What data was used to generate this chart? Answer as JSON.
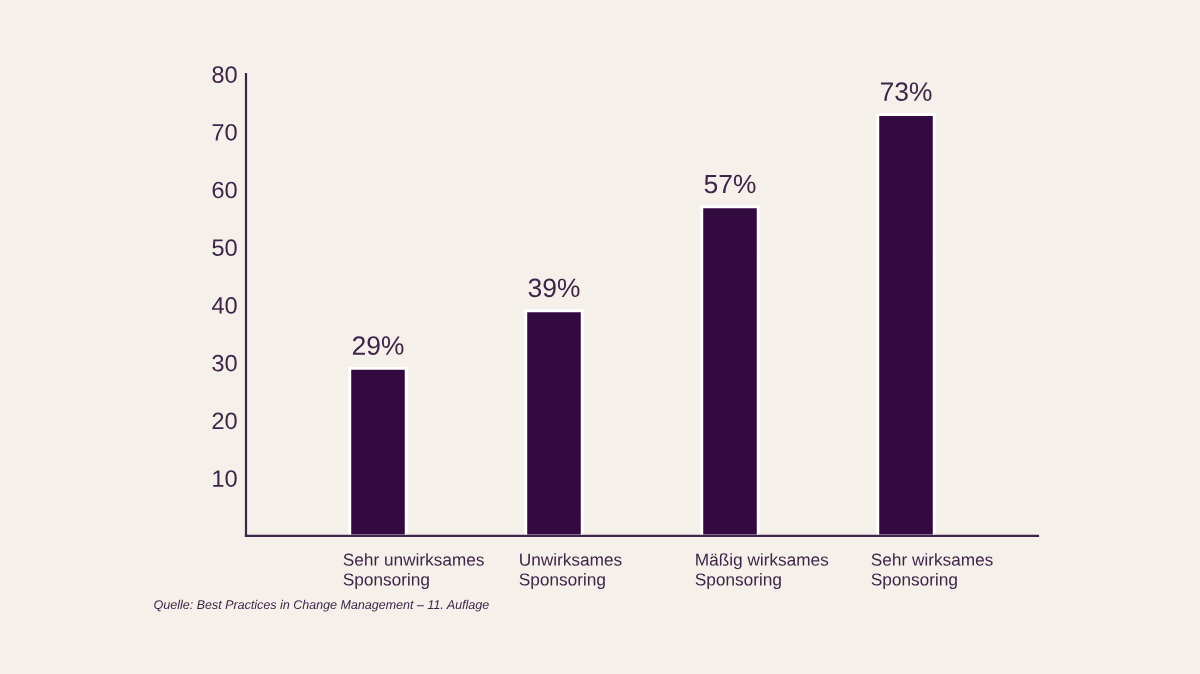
{
  "chart_data": {
    "type": "bar",
    "categories": [
      "Sehr unwirksames\nSponsoring",
      "Unwirksames\nSponsoring",
      "Mäßig wirksames\nSponsoring",
      "Sehr wirksames\nSponsoring"
    ],
    "values": [
      29,
      39,
      57,
      73
    ],
    "color": "#330a40",
    "value_labels": [
      "29%",
      "39%",
      "57%",
      "73%"
    ],
    "ylim": [
      0,
      80
    ],
    "yticks": [
      10,
      20,
      30,
      40,
      50,
      60,
      70,
      80
    ],
    "grid": false,
    "annotations": [
      "Quelle: Best Practices in Change Management – 11. Auflage"
    ]
  }
}
